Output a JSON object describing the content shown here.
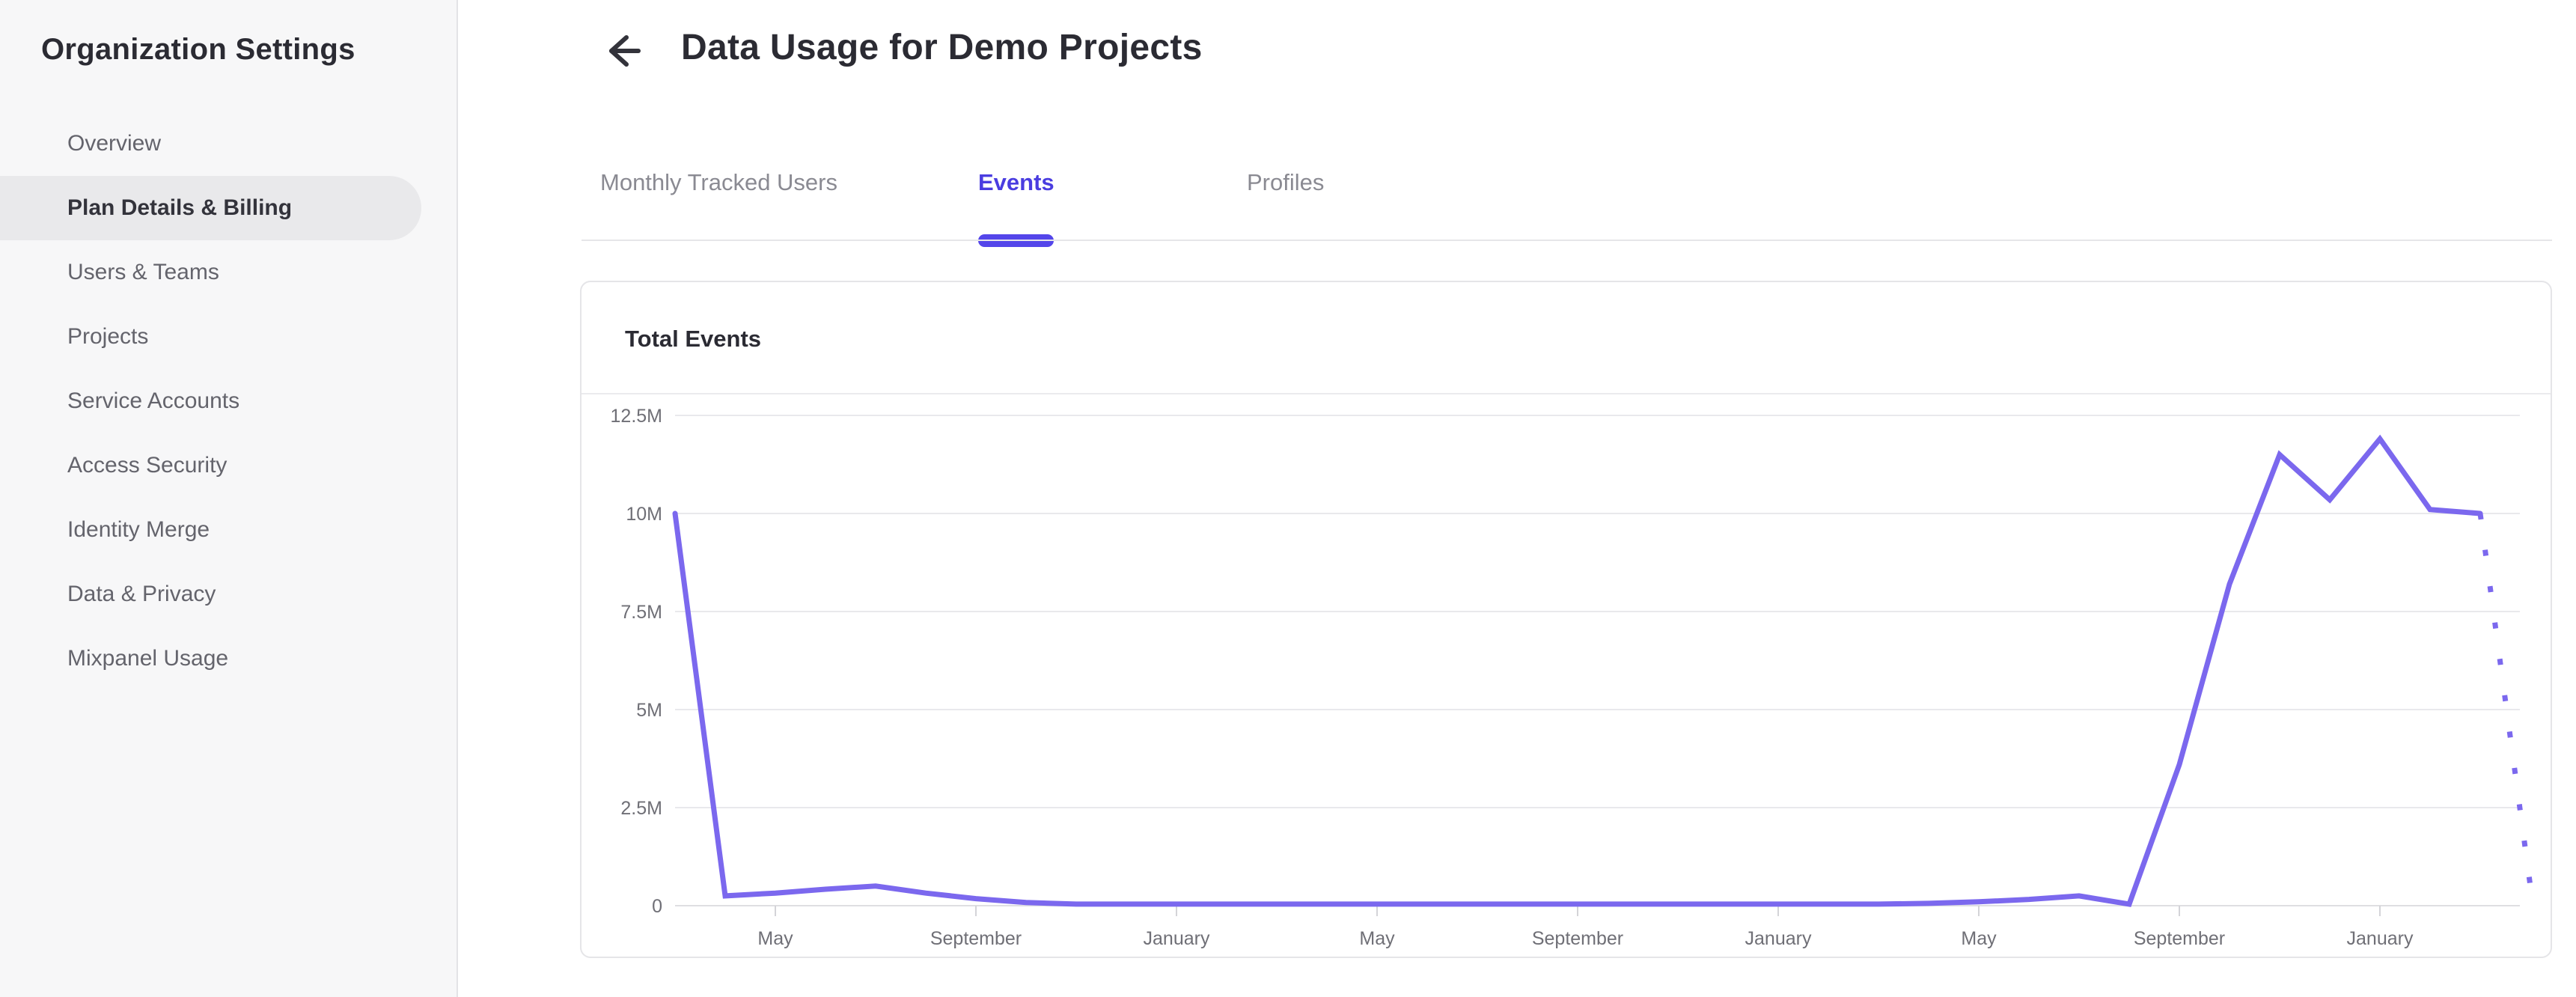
{
  "sidebar": {
    "title": "Organization Settings",
    "items": [
      {
        "label": "Overview",
        "active": false
      },
      {
        "label": "Plan Details & Billing",
        "active": true
      },
      {
        "label": "Users & Teams",
        "active": false
      },
      {
        "label": "Projects",
        "active": false
      },
      {
        "label": "Service Accounts",
        "active": false
      },
      {
        "label": "Access Security",
        "active": false
      },
      {
        "label": "Identity Merge",
        "active": false
      },
      {
        "label": "Data & Privacy",
        "active": false
      },
      {
        "label": "Mixpanel Usage",
        "active": false
      }
    ]
  },
  "header": {
    "title": "Data Usage for Demo Projects"
  },
  "tabs": [
    {
      "label": "Monthly Tracked Users",
      "active": false
    },
    {
      "label": "Events",
      "active": true
    },
    {
      "label": "Profiles",
      "active": false
    }
  ],
  "card": {
    "title": "Total Events"
  },
  "colors": {
    "accent_tab_text": "#4a3de0",
    "accent_tab_underline": "#5446ea",
    "line": "#7b68ee",
    "grid": "#e9e9ec",
    "axis": "#dfdfe2",
    "tick": "#d4d4d8",
    "axis_text": "#6f6f76"
  },
  "chart_data": {
    "type": "line",
    "title": "Total Events",
    "legend": "none",
    "grid": true,
    "y_tick_labels": [
      "12.5M",
      "10M",
      "7.5M",
      "5M",
      "2.5M",
      "0"
    ],
    "ylim_millions": [
      0,
      12.5
    ],
    "x_tick_labels": [
      "May",
      "September",
      "January",
      "May",
      "September",
      "January",
      "May",
      "September",
      "January"
    ],
    "x_tick_point_indices": [
      2,
      6,
      10,
      14,
      18,
      22,
      26,
      30,
      34
    ],
    "points_start_month": "March",
    "points_cadence": "monthly",
    "values_millions": [
      10,
      0.25,
      0.32,
      0.42,
      0.5,
      0.32,
      0.18,
      0.08,
      0.04,
      0.04,
      0.04,
      0.04,
      0.04,
      0.04,
      0.04,
      0.04,
      0.04,
      0.04,
      0.04,
      0.04,
      0.04,
      0.04,
      0.04,
      0.04,
      0.04,
      0.06,
      0.1,
      0.16,
      0.25,
      0.04,
      3.6,
      8.2,
      11.5,
      10.35,
      11.9,
      10.1,
      10,
      0.5
    ],
    "dotted_tail_points": 1
  }
}
